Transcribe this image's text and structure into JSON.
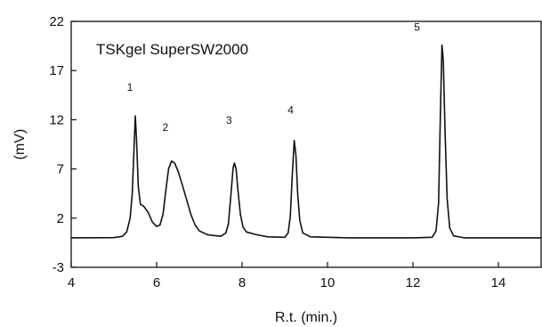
{
  "chart_data": {
    "type": "line",
    "title": "",
    "xlabel": "R.t. (min.)",
    "ylabel": "(mV)",
    "xlim": [
      4,
      15
    ],
    "ylim": [
      -3,
      22
    ],
    "x_ticks": [
      4,
      6,
      8,
      10,
      12,
      14
    ],
    "y_ticks": [
      -3,
      2,
      7,
      12,
      17,
      22
    ],
    "grid": false,
    "annotation": "TSKgel SuperSW2000",
    "baseline": 0,
    "peaks": [
      {
        "label": "1",
        "x": 5.5,
        "y": 12.4
      },
      {
        "label": "2",
        "x": 6.35,
        "y": 7.8
      },
      {
        "label": "3",
        "x": 7.82,
        "y": 7.6
      },
      {
        "label": "4",
        "x": 9.22,
        "y": 9.9
      },
      {
        "label": "5",
        "x": 12.68,
        "y": 19.6
      }
    ],
    "series": [
      {
        "values": [
          [
            4.0,
            0.0
          ],
          [
            5.0,
            0.02
          ],
          [
            5.2,
            0.15
          ],
          [
            5.3,
            0.6
          ],
          [
            5.38,
            2.0
          ],
          [
            5.43,
            4.5
          ],
          [
            5.47,
            9.0
          ],
          [
            5.5,
            12.4
          ],
          [
            5.53,
            10.0
          ],
          [
            5.57,
            5.2
          ],
          [
            5.62,
            3.4
          ],
          [
            5.7,
            3.2
          ],
          [
            5.8,
            2.6
          ],
          [
            5.9,
            1.6
          ],
          [
            6.0,
            1.15
          ],
          [
            6.08,
            1.3
          ],
          [
            6.15,
            2.4
          ],
          [
            6.22,
            5.0
          ],
          [
            6.28,
            7.0
          ],
          [
            6.35,
            7.8
          ],
          [
            6.42,
            7.6
          ],
          [
            6.5,
            6.8
          ],
          [
            6.6,
            5.4
          ],
          [
            6.7,
            3.9
          ],
          [
            6.8,
            2.4
          ],
          [
            6.9,
            1.3
          ],
          [
            7.0,
            0.7
          ],
          [
            7.2,
            0.3
          ],
          [
            7.5,
            0.15
          ],
          [
            7.62,
            0.5
          ],
          [
            7.68,
            1.4
          ],
          [
            7.74,
            4.4
          ],
          [
            7.79,
            7.1
          ],
          [
            7.82,
            7.6
          ],
          [
            7.86,
            7.0
          ],
          [
            7.9,
            5.0
          ],
          [
            7.96,
            2.4
          ],
          [
            8.02,
            1.1
          ],
          [
            8.1,
            0.6
          ],
          [
            8.3,
            0.35
          ],
          [
            8.6,
            0.1
          ],
          [
            9.0,
            0.05
          ],
          [
            9.08,
            0.5
          ],
          [
            9.13,
            2.2
          ],
          [
            9.17,
            6.0
          ],
          [
            9.22,
            9.9
          ],
          [
            9.26,
            8.4
          ],
          [
            9.3,
            4.6
          ],
          [
            9.35,
            1.8
          ],
          [
            9.42,
            0.5
          ],
          [
            9.6,
            0.1
          ],
          [
            10.5,
            0.0
          ],
          [
            12.0,
            0.0
          ],
          [
            12.45,
            0.05
          ],
          [
            12.54,
            0.7
          ],
          [
            12.6,
            3.5
          ],
          [
            12.64,
            12.0
          ],
          [
            12.68,
            19.6
          ],
          [
            12.71,
            18.0
          ],
          [
            12.75,
            11.0
          ],
          [
            12.8,
            4.0
          ],
          [
            12.86,
            1.0
          ],
          [
            12.95,
            0.2
          ],
          [
            13.2,
            0.0
          ],
          [
            15.0,
            0.0
          ]
        ]
      }
    ]
  }
}
